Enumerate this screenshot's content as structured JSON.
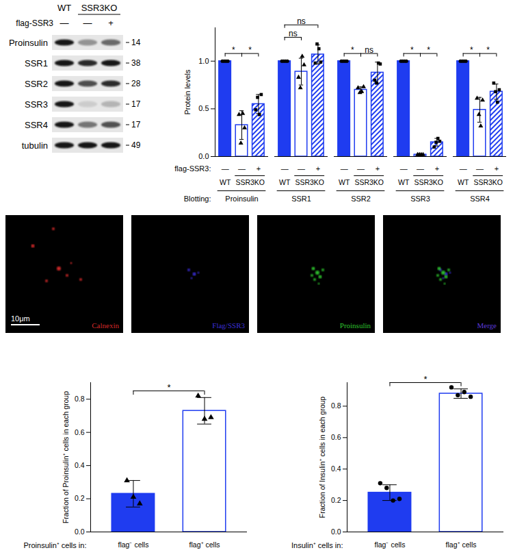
{
  "chart_data": [
    {
      "type": "bar",
      "ylabel": "Protein levels",
      "ylim": [
        0,
        1.35
      ],
      "yticks": [
        {
          "value": 0,
          "label": "0.0"
        },
        0.5,
        {
          "value": 1,
          "label": "1.0"
        }
      ],
      "groups": [
        "Proinsulin",
        "SSR1",
        "SSR2",
        "SSR3",
        "SSR4"
      ],
      "group_label": "Blotting:",
      "flag_label": "flag-SSR3:",
      "series": [
        {
          "name": "WT",
          "flag": "—",
          "color": "#1f3cf0",
          "marker": "circle",
          "values": [
            1,
            1,
            1,
            1,
            1
          ],
          "errors": [
            0,
            0,
            0,
            0,
            0
          ],
          "points": [
            [
              1,
              1,
              1,
              1
            ],
            [
              1,
              1,
              1,
              1
            ],
            [
              1,
              1,
              1,
              1
            ],
            [
              1,
              1,
              1,
              1
            ],
            [
              1,
              1,
              1,
              1
            ]
          ]
        },
        {
          "name": "SSR3KO",
          "flag": "—",
          "color": "#1f3cf0",
          "marker": "triangle",
          "values": [
            0.33,
            0.89,
            0.7,
            0.02,
            0.49
          ],
          "errors": [
            0.15,
            0.14,
            0.03,
            0.01,
            0.13
          ],
          "points": [
            [
              0.44,
              0.14,
              0.45,
              0.3
            ],
            [
              0.83,
              0.72,
              1.05,
              0.96
            ],
            [
              0.72,
              0.67,
              0.68,
              0.73
            ],
            [
              0.02,
              0.02,
              0.02,
              0.02
            ],
            [
              0.61,
              0.44,
              0.32,
              0.59
            ]
          ]
        },
        {
          "name": "SSR3KO",
          "flag": "+",
          "color": "#1f3cf0",
          "marker": "square",
          "values": [
            0.55,
            1.07,
            0.88,
            0.15,
            0.68
          ],
          "errors": [
            0.1,
            0.1,
            0.11,
            0.04,
            0.08
          ],
          "points": [
            [
              0.49,
              0.62,
              0.44,
              0.65
            ],
            [
              0.98,
              1.18,
              1.13,
              0.99
            ],
            [
              0.8,
              0.77,
              0.98,
              0.97
            ],
            [
              0.1,
              0.15,
              0.19,
              0.16
            ],
            [
              0.77,
              0.68,
              0.57,
              0.7
            ]
          ]
        }
      ],
      "significance": [
        {
          "group": "Proinsulin",
          "pair": [
            0,
            1
          ],
          "label": "*"
        },
        {
          "group": "Proinsulin",
          "pair": [
            1,
            2
          ],
          "label": "*"
        },
        {
          "group": "SSR1",
          "pair": [
            0,
            1
          ],
          "label": "ns"
        },
        {
          "group": "SSR1",
          "pair": [
            0,
            2
          ],
          "label": "ns"
        },
        {
          "group": "SSR2",
          "pair": [
            0,
            1
          ],
          "label": "*"
        },
        {
          "group": "SSR2",
          "pair": [
            1,
            2
          ],
          "label": "ns"
        },
        {
          "group": "SSR3",
          "pair": [
            0,
            1
          ],
          "label": "*"
        },
        {
          "group": "SSR3",
          "pair": [
            1,
            2
          ],
          "label": "*"
        },
        {
          "group": "SSR4",
          "pair": [
            0,
            1
          ],
          "label": "*"
        },
        {
          "group": "SSR4",
          "pair": [
            1,
            2
          ],
          "label": "*"
        }
      ]
    },
    {
      "type": "bar",
      "ylabel": "Fraction of Proinsulin⁺ cells in each group",
      "xlabel": "Proinsulin⁺ cells in:",
      "categories": [
        "flag⁻ cells",
        "flag⁺ cells"
      ],
      "values": [
        0.23,
        0.73
      ],
      "errors": [
        0.08,
        0.08
      ],
      "points": [
        [
          0.31,
          0.21,
          0.17
        ],
        [
          0.82,
          0.68,
          0.69
        ]
      ],
      "color": "#1f3cf0",
      "marker": "triangle",
      "ylim": [
        0,
        0.9
      ],
      "yticks": [
        {
          "value": 0,
          "label": "0.0"
        },
        0.2,
        0.4,
        0.6,
        0.8
      ],
      "significance": [
        {
          "pair": [
            0,
            1
          ],
          "label": "*"
        }
      ]
    },
    {
      "type": "bar",
      "ylabel": "Fraction of Insulin⁺ cells in each group",
      "xlabel": "Insulin⁺ cells in:",
      "categories": [
        "flag⁻ cells",
        "flag⁺ cells"
      ],
      "values": [
        0.25,
        0.88
      ],
      "errors": [
        0.05,
        0.03
      ],
      "points": [
        [
          0.31,
          0.28,
          0.2,
          0.21
        ],
        [
          0.92,
          0.87,
          0.89,
          0.86
        ]
      ],
      "color": "#1f3cf0",
      "marker": "circle",
      "ylim": [
        0,
        0.95
      ],
      "yticks": [
        {
          "value": 0,
          "label": "0.0"
        },
        0.2,
        0.4,
        0.6,
        0.8
      ],
      "significance": [
        {
          "pair": [
            0,
            1
          ],
          "label": "*"
        }
      ]
    }
  ],
  "blot": {
    "lane_groups": [
      {
        "label": "WT",
        "lanes": 1
      },
      {
        "label": "SSR3KO",
        "lanes": 2
      }
    ],
    "flag_label": "flag-SSR3",
    "flags": [
      "—",
      "—",
      "+"
    ],
    "rows": [
      {
        "label": "Proinsulin",
        "mw": 14
      },
      {
        "label": "SSR1",
        "mw": 38
      },
      {
        "label": "SSR2",
        "mw": 28
      },
      {
        "label": "SSR3",
        "mw": 17
      },
      {
        "label": "SSR4",
        "mw": 17
      },
      {
        "label": "tubulin",
        "mw": 49
      }
    ]
  },
  "microscopy": {
    "channels": [
      {
        "label": "Calnexin",
        "color": "#d42a2a"
      },
      {
        "label": "Flag/SSR3",
        "color": "#3b2fd6"
      },
      {
        "label": "Proinsulin",
        "color": "#2fc42f"
      },
      {
        "label": "Merge",
        "color": "#5a3ad8"
      }
    ],
    "scale_bar": "10μm"
  }
}
